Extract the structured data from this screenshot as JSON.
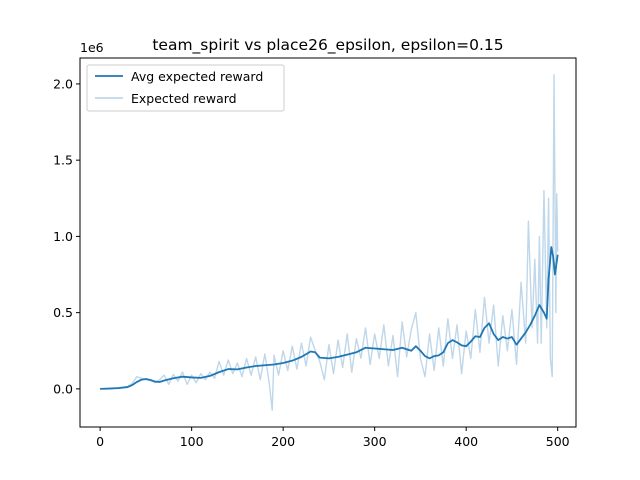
{
  "chart_data": {
    "type": "line",
    "title": "team_spirit vs place26_epsilon, epsilon=0.15",
    "xlabel": "",
    "ylabel": "",
    "y_scale_label": "1e6",
    "xlim": [
      -22,
      520
    ],
    "ylim": [
      -250000,
      2170000
    ],
    "x_ticks": [
      0,
      100,
      200,
      300,
      400,
      500
    ],
    "x_tick_labels": [
      "0",
      "100",
      "200",
      "300",
      "400",
      "500"
    ],
    "y_ticks": [
      0,
      500000,
      1000000,
      1500000,
      2000000
    ],
    "y_tick_labels": [
      "0.0",
      "0.5",
      "1.0",
      "1.5",
      "2.0"
    ],
    "grid": false,
    "legend_position": "upper-left",
    "series": [
      {
        "name": "Avg expected reward",
        "color": "#1f77b4",
        "points": [
          [
            0,
            0
          ],
          [
            10,
            2000
          ],
          [
            20,
            5000
          ],
          [
            30,
            12000
          ],
          [
            35,
            25000
          ],
          [
            40,
            45000
          ],
          [
            45,
            60000
          ],
          [
            50,
            65000
          ],
          [
            55,
            58000
          ],
          [
            60,
            48000
          ],
          [
            65,
            45000
          ],
          [
            70,
            55000
          ],
          [
            80,
            70000
          ],
          [
            90,
            80000
          ],
          [
            100,
            75000
          ],
          [
            110,
            72000
          ],
          [
            120,
            85000
          ],
          [
            130,
            110000
          ],
          [
            140,
            130000
          ],
          [
            150,
            128000
          ],
          [
            160,
            140000
          ],
          [
            170,
            150000
          ],
          [
            180,
            155000
          ],
          [
            190,
            160000
          ],
          [
            200,
            170000
          ],
          [
            210,
            185000
          ],
          [
            220,
            210000
          ],
          [
            230,
            245000
          ],
          [
            235,
            240000
          ],
          [
            240,
            205000
          ],
          [
            250,
            200000
          ],
          [
            260,
            210000
          ],
          [
            270,
            225000
          ],
          [
            280,
            240000
          ],
          [
            290,
            270000
          ],
          [
            300,
            265000
          ],
          [
            310,
            260000
          ],
          [
            320,
            255000
          ],
          [
            330,
            270000
          ],
          [
            340,
            250000
          ],
          [
            345,
            280000
          ],
          [
            350,
            250000
          ],
          [
            355,
            215000
          ],
          [
            360,
            200000
          ],
          [
            365,
            215000
          ],
          [
            370,
            220000
          ],
          [
            375,
            240000
          ],
          [
            380,
            300000
          ],
          [
            385,
            320000
          ],
          [
            390,
            305000
          ],
          [
            395,
            285000
          ],
          [
            400,
            280000
          ],
          [
            405,
            310000
          ],
          [
            410,
            345000
          ],
          [
            415,
            340000
          ],
          [
            420,
            400000
          ],
          [
            425,
            430000
          ],
          [
            430,
            360000
          ],
          [
            435,
            320000
          ],
          [
            440,
            340000
          ],
          [
            445,
            330000
          ],
          [
            450,
            340000
          ],
          [
            455,
            290000
          ],
          [
            460,
            330000
          ],
          [
            465,
            370000
          ],
          [
            470,
            420000
          ],
          [
            475,
            480000
          ],
          [
            480,
            550000
          ],
          [
            485,
            500000
          ],
          [
            488,
            460000
          ],
          [
            490,
            720000
          ],
          [
            493,
            930000
          ],
          [
            495,
            870000
          ],
          [
            497,
            750000
          ],
          [
            500,
            880000
          ]
        ]
      },
      {
        "name": "Expected reward",
        "color": "#bfd7ea",
        "points": [
          [
            0,
            0
          ],
          [
            10,
            2000
          ],
          [
            20,
            8000
          ],
          [
            30,
            15000
          ],
          [
            35,
            35000
          ],
          [
            40,
            80000
          ],
          [
            45,
            70000
          ],
          [
            50,
            60000
          ],
          [
            55,
            55000
          ],
          [
            60,
            40000
          ],
          [
            65,
            60000
          ],
          [
            70,
            90000
          ],
          [
            75,
            30000
          ],
          [
            80,
            95000
          ],
          [
            85,
            50000
          ],
          [
            90,
            110000
          ],
          [
            95,
            30000
          ],
          [
            100,
            90000
          ],
          [
            105,
            40000
          ],
          [
            110,
            100000
          ],
          [
            115,
            60000
          ],
          [
            120,
            110000
          ],
          [
            125,
            70000
          ],
          [
            130,
            180000
          ],
          [
            135,
            90000
          ],
          [
            140,
            190000
          ],
          [
            145,
            100000
          ],
          [
            150,
            170000
          ],
          [
            155,
            80000
          ],
          [
            160,
            200000
          ],
          [
            165,
            90000
          ],
          [
            170,
            210000
          ],
          [
            175,
            60000
          ],
          [
            180,
            230000
          ],
          [
            185,
            30000
          ],
          [
            188,
            -140000
          ],
          [
            190,
            220000
          ],
          [
            195,
            90000
          ],
          [
            200,
            250000
          ],
          [
            205,
            120000
          ],
          [
            210,
            280000
          ],
          [
            215,
            130000
          ],
          [
            220,
            300000
          ],
          [
            225,
            150000
          ],
          [
            230,
            340000
          ],
          [
            235,
            250000
          ],
          [
            240,
            180000
          ],
          [
            245,
            60000
          ],
          [
            250,
            290000
          ],
          [
            255,
            100000
          ],
          [
            260,
            320000
          ],
          [
            265,
            140000
          ],
          [
            270,
            360000
          ],
          [
            275,
            110000
          ],
          [
            280,
            330000
          ],
          [
            285,
            200000
          ],
          [
            290,
            400000
          ],
          [
            295,
            160000
          ],
          [
            300,
            360000
          ],
          [
            305,
            200000
          ],
          [
            310,
            420000
          ],
          [
            315,
            150000
          ],
          [
            320,
            350000
          ],
          [
            325,
            80000
          ],
          [
            330,
            440000
          ],
          [
            335,
            210000
          ],
          [
            340,
            390000
          ],
          [
            345,
            500000
          ],
          [
            350,
            200000
          ],
          [
            355,
            80000
          ],
          [
            360,
            360000
          ],
          [
            365,
            120000
          ],
          [
            370,
            400000
          ],
          [
            375,
            150000
          ],
          [
            380,
            460000
          ],
          [
            385,
            200000
          ],
          [
            390,
            420000
          ],
          [
            395,
            100000
          ],
          [
            400,
            380000
          ],
          [
            405,
            200000
          ],
          [
            410,
            520000
          ],
          [
            415,
            240000
          ],
          [
            420,
            600000
          ],
          [
            425,
            300000
          ],
          [
            430,
            550000
          ],
          [
            435,
            150000
          ],
          [
            440,
            480000
          ],
          [
            445,
            250000
          ],
          [
            450,
            520000
          ],
          [
            455,
            160000
          ],
          [
            460,
            700000
          ],
          [
            465,
            300000
          ],
          [
            468,
            1100000
          ],
          [
            472,
            400000
          ],
          [
            475,
            850000
          ],
          [
            478,
            300000
          ],
          [
            480,
            1000000
          ],
          [
            482,
            300000
          ],
          [
            485,
            1300000
          ],
          [
            488,
            400000
          ],
          [
            490,
            1250000
          ],
          [
            492,
            200000
          ],
          [
            494,
            80000
          ],
          [
            496,
            2060000
          ],
          [
            498,
            500000
          ],
          [
            499,
            1280000
          ],
          [
            500,
            900000
          ]
        ]
      }
    ]
  }
}
